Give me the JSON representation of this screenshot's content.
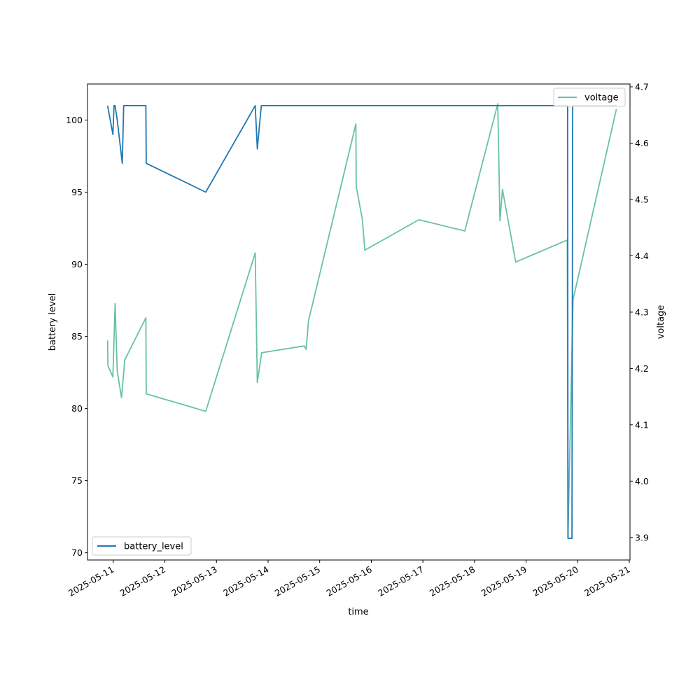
{
  "chart_data": {
    "type": "line",
    "title": "",
    "xlabel": "time",
    "ylabel": "battery level",
    "y2label": "voltage",
    "xlim": [
      "2025-05-10T12:00",
      "2025-05-21T00:20"
    ],
    "ylim": [
      69.5,
      102.5
    ],
    "y2lim": [
      3.86,
      4.705
    ],
    "x_ticks": [
      "2025-05-11",
      "2025-05-12",
      "2025-05-13",
      "2025-05-14",
      "2025-05-15",
      "2025-05-16",
      "2025-05-17",
      "2025-05-18",
      "2025-05-19",
      "2025-05-20",
      "2025-05-21"
    ],
    "y_ticks": [
      70,
      75,
      80,
      85,
      90,
      95,
      100
    ],
    "y2_ticks": [
      3.9,
      4.0,
      4.1,
      4.2,
      4.3,
      4.4,
      4.5,
      4.6,
      4.7
    ],
    "grid": false,
    "series": [
      {
        "name": "battery_level",
        "axis": "left",
        "color": "#1f77b4",
        "legend": "lower-left",
        "x": [
          "2025-05-10T21:20",
          "2025-05-10T23:50",
          "2025-05-11T00:20",
          "2025-05-11T00:50",
          "2025-05-11T01:50",
          "2025-05-11T04:10",
          "2025-05-11T04:50",
          "2025-05-11T15:10",
          "2025-05-11T15:20",
          "2025-05-12T19:00",
          "2025-05-13T18:00",
          "2025-05-13T19:00",
          "2025-05-13T20:50",
          "2025-05-19T19:10",
          "2025-05-19T19:20",
          "2025-05-19T19:30",
          "2025-05-19T21:20",
          "2025-05-19T21:40",
          "2025-05-20T18:00"
        ],
        "values": [
          101,
          99,
          101,
          101,
          100,
          97,
          101,
          101,
          97,
          95,
          101,
          98,
          101,
          101,
          101,
          71,
          71,
          101,
          101
        ]
      },
      {
        "name": "voltage",
        "axis": "right",
        "color": "#66c2a5",
        "legend": "upper-right",
        "x": [
          "2025-05-10T21:20",
          "2025-05-10T21:30",
          "2025-05-10T23:50",
          "2025-05-11T00:50",
          "2025-05-11T01:50",
          "2025-05-11T03:50",
          "2025-05-11T05:20",
          "2025-05-11T15:10",
          "2025-05-11T15:20",
          "2025-05-12T19:00",
          "2025-05-13T18:00",
          "2025-05-13T19:00",
          "2025-05-13T21:00",
          "2025-05-14T16:50",
          "2025-05-14T17:40",
          "2025-05-14T18:50",
          "2025-05-15T16:50",
          "2025-05-15T17:00",
          "2025-05-15T19:50",
          "2025-05-15T21:00",
          "2025-05-16T22:10",
          "2025-05-17T19:30",
          "2025-05-18T10:50",
          "2025-05-18T11:50",
          "2025-05-18T13:00",
          "2025-05-18T19:10",
          "2025-05-19T19:10",
          "2025-05-19T19:30",
          "2025-05-19T21:50",
          "2025-05-20T18:00"
        ],
        "values": [
          4.25,
          4.205,
          4.185,
          4.315,
          4.195,
          4.148,
          4.215,
          4.29,
          4.155,
          4.124,
          4.405,
          4.175,
          4.228,
          4.24,
          4.234,
          4.285,
          4.634,
          4.523,
          4.465,
          4.41,
          4.464,
          4.444,
          4.67,
          4.462,
          4.518,
          4.389,
          4.428,
          3.9,
          4.322,
          4.66
        ]
      }
    ]
  }
}
